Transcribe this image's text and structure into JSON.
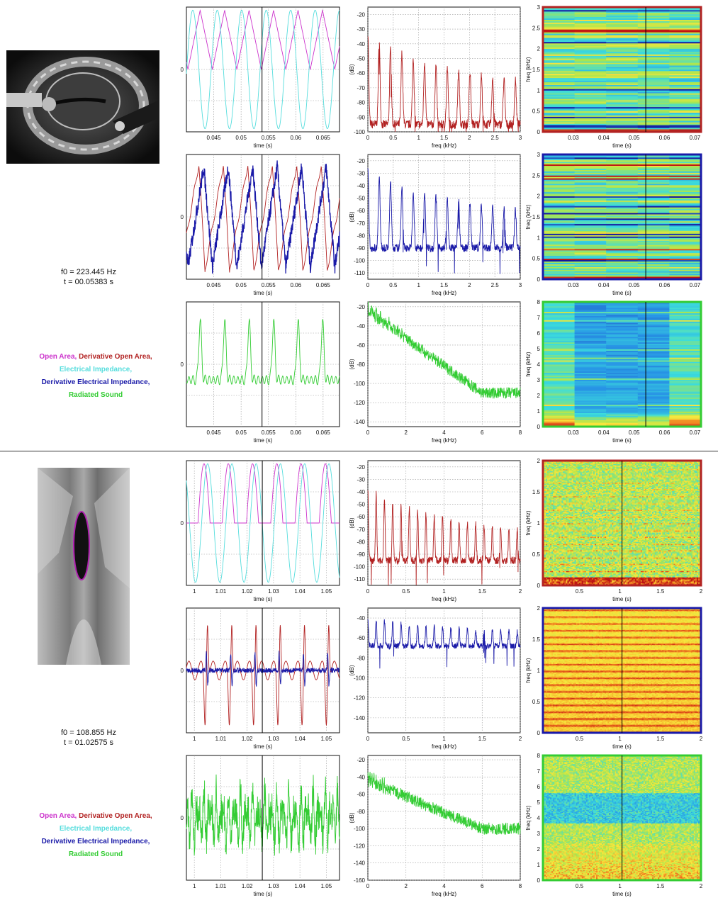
{
  "colors": {
    "open_area": "#cc33cc",
    "deriv_open_area": "#b22222",
    "impedance": "#55dddd",
    "deriv_impedance": "#1a1aa8",
    "sound": "#33cc33"
  },
  "legend": {
    "open_area": "Open Area,",
    "deriv_open_area": "Derivative Open Area,",
    "impedance": "Electrical Impedance,",
    "deriv_impedance": "Derivative Electrical Impedance,",
    "sound": "Radiated Sound"
  },
  "panels": [
    {
      "id": "top",
      "info": {
        "f0": "f0 = 223.445 Hz",
        "t": "t = 00.05383 s"
      },
      "photo": "vocal-fold-photo-top",
      "charts": [
        {
          "type": "line",
          "row": 0,
          "col": 0,
          "xlabel": "time (s)",
          "ylabel": "",
          "xlim": [
            0.04,
            0.068
          ],
          "ylim": [
            -1,
            1
          ],
          "xticks": [
            "0.045",
            "0.05",
            "0.055",
            "0.06",
            "0.065"
          ],
          "xtick_vals": [
            0.045,
            0.05,
            0.055,
            0.06,
            0.065
          ],
          "yticks": [
            "0"
          ],
          "ytick_vals": [
            0
          ],
          "cursor": 0.05383,
          "series": [
            {
              "color": "open_area",
              "shape": "tri",
              "period": 0.004475,
              "phase": 0.0,
              "amp": 0.95,
              "offset": 0.0,
              "floor": 0.0
            },
            {
              "color": "impedance",
              "shape": "sine",
              "period": 0.004475,
              "phase": 0.8,
              "amp": 0.95,
              "offset": 0.0
            }
          ]
        },
        {
          "type": "line",
          "row": 0,
          "col": 1,
          "xlabel": "freq (kHz)",
          "ylabel": "(dB)",
          "xlim": [
            0,
            3
          ],
          "ylim": [
            -100,
            -15
          ],
          "xticks": [
            "0",
            "0.5",
            "1",
            "1.5",
            "2",
            "2.5",
            "3"
          ],
          "xtick_vals": [
            0,
            0.5,
            1,
            1.5,
            2,
            2.5,
            3
          ],
          "yticks": [
            "-20",
            "-30",
            "-40",
            "-50",
            "-60",
            "-70",
            "-80",
            "-90",
            "-100"
          ],
          "ytick_vals": [
            -20,
            -30,
            -40,
            -50,
            -60,
            -70,
            -80,
            -90,
            -100
          ],
          "series": [
            {
              "color": "deriv_open_area",
              "shape": "spectrum",
              "f0": 0.2234,
              "peak": -32,
              "slope": 12,
              "floor": -95
            }
          ]
        },
        {
          "type": "heatmap",
          "row": 0,
          "col": 2,
          "xlabel": "time (s)",
          "ylabel": "freq (kHz)",
          "xlim": [
            0.02,
            0.072
          ],
          "ylim": [
            0,
            3
          ],
          "xticks": [
            "0.03",
            "0.04",
            "0.05",
            "0.06",
            "0.07"
          ],
          "xtick_vals": [
            0.03,
            0.04,
            0.05,
            0.06,
            0.07
          ],
          "yticks": [
            "0",
            "0.5",
            "1",
            "1.5",
            "2",
            "2.5",
            "3"
          ],
          "ytick_vals": [
            0,
            0.5,
            1,
            1.5,
            2,
            2.5,
            3
          ],
          "cursor": 0.05383,
          "border": "deriv_open_area",
          "style": "blocky"
        },
        {
          "type": "line",
          "row": 1,
          "col": 0,
          "xlabel": "time (s)",
          "ylabel": "",
          "xlim": [
            0.04,
            0.068
          ],
          "ylim": [
            -1,
            1
          ],
          "xticks": [
            "0.045",
            "0.05",
            "0.055",
            "0.06",
            "0.065"
          ],
          "xtick_vals": [
            0.045,
            0.05,
            0.055,
            0.06,
            0.065
          ],
          "yticks": [
            "0"
          ],
          "ytick_vals": [
            0
          ],
          "cursor": 0.05383,
          "series": [
            {
              "color": "deriv_open_area",
              "shape": "saw",
              "period": 0.004475,
              "phase": 0.3,
              "amp": 0.85,
              "offset": 0.0
            },
            {
              "color": "deriv_impedance",
              "shape": "sawnoisy",
              "period": 0.004475,
              "phase": 0.0,
              "amp": 0.8,
              "offset": 0.0
            }
          ]
        },
        {
          "type": "line",
          "row": 1,
          "col": 1,
          "xlabel": "freq (kHz)",
          "ylabel": "(dB)",
          "xlim": [
            0,
            3
          ],
          "ylim": [
            -115,
            -15
          ],
          "xticks": [
            "0",
            "0.5",
            "1",
            "1.5",
            "2",
            "2.5",
            "3"
          ],
          "xtick_vals": [
            0,
            0.5,
            1,
            1.5,
            2,
            2.5,
            3
          ],
          "yticks": [
            "-20",
            "-30",
            "-40",
            "-50",
            "-60",
            "-70",
            "-80",
            "-90",
            "-100",
            "-110"
          ],
          "ytick_vals": [
            -20,
            -30,
            -40,
            -50,
            -60,
            -70,
            -80,
            -90,
            -100,
            -110
          ],
          "series": [
            {
              "color": "deriv_impedance",
              "shape": "spectrum",
              "f0": 0.2234,
              "peak": -26,
              "slope": 12,
              "floor": -90
            }
          ]
        },
        {
          "type": "heatmap",
          "row": 1,
          "col": 2,
          "xlabel": "time (s)",
          "ylabel": "freq (kHz)",
          "xlim": [
            0.02,
            0.072
          ],
          "ylim": [
            0,
            3
          ],
          "xticks": [
            "0.03",
            "0.04",
            "0.05",
            "0.06",
            "0.07"
          ],
          "xtick_vals": [
            0.03,
            0.04,
            0.05,
            0.06,
            0.07
          ],
          "yticks": [
            "0",
            "0.5",
            "1",
            "1.5",
            "2",
            "2.5",
            "3"
          ],
          "ytick_vals": [
            0,
            0.5,
            1,
            1.5,
            2,
            2.5,
            3
          ],
          "cursor": 0.05383,
          "border": "deriv_impedance",
          "style": "blocky"
        },
        {
          "type": "line",
          "row": 2,
          "col": 0,
          "xlabel": "time (s)",
          "ylabel": "",
          "xlim": [
            0.04,
            0.068
          ],
          "ylim": [
            -1,
            1
          ],
          "xticks": [
            "0.045",
            "0.05",
            "0.055",
            "0.06",
            "0.065"
          ],
          "xtick_vals": [
            0.045,
            0.05,
            0.055,
            0.06,
            0.065
          ],
          "yticks": [
            "0"
          ],
          "ytick_vals": [
            0
          ],
          "cursor": 0.05383,
          "series": [
            {
              "color": "sound",
              "shape": "pulse",
              "period": 0.004475,
              "phase": 0.0,
              "amp": 0.95,
              "offset": -0.25
            }
          ]
        },
        {
          "type": "line",
          "row": 2,
          "col": 1,
          "xlabel": "freq (kHz)",
          "ylabel": "(dB)",
          "xlim": [
            0,
            8
          ],
          "ylim": [
            -145,
            -15
          ],
          "xticks": [
            "0",
            "2",
            "4",
            "6",
            "8"
          ],
          "xtick_vals": [
            0,
            2,
            4,
            6,
            8
          ],
          "yticks": [
            "-20",
            "-40",
            "-60",
            "-80",
            "-100",
            "-120",
            "-140"
          ],
          "ytick_vals": [
            -20,
            -40,
            -60,
            -80,
            -100,
            -120,
            -140
          ],
          "series": [
            {
              "color": "sound",
              "shape": "decay",
              "f0": 0.2234,
              "start": -25,
              "end": -110,
              "noise": 12
            }
          ]
        },
        {
          "type": "heatmap",
          "row": 2,
          "col": 2,
          "xlabel": "time (s)",
          "ylabel": "freq (kHz)",
          "xlim": [
            0.02,
            0.072
          ],
          "ylim": [
            0,
            8
          ],
          "xticks": [
            "0.03",
            "0.04",
            "0.05",
            "0.06",
            "0.07"
          ],
          "xtick_vals": [
            0.03,
            0.04,
            0.05,
            0.06,
            0.07
          ],
          "yticks": [
            "0",
            "1",
            "2",
            "3",
            "4",
            "5",
            "6",
            "7",
            "8"
          ],
          "ytick_vals": [
            0,
            1,
            2,
            3,
            4,
            5,
            6,
            7,
            8
          ],
          "cursor": 0.05383,
          "border": "sound",
          "style": "blocky-blue"
        }
      ]
    },
    {
      "id": "bottom",
      "info": {
        "f0": "f0 = 108.855 Hz",
        "t": "t = 01.02575 s"
      },
      "photo": "glottis-photo-bottom",
      "charts": [
        {
          "type": "line",
          "row": 0,
          "col": 0,
          "xlabel": "time (s)",
          "ylabel": "",
          "xlim": [
            0.997,
            1.055
          ],
          "ylim": [
            -1,
            1
          ],
          "xticks": [
            "1",
            "1.01",
            "1.02",
            "1.03",
            "1.04",
            "1.05"
          ],
          "xtick_vals": [
            1,
            1.01,
            1.02,
            1.03,
            1.04,
            1.05
          ],
          "yticks": [
            "0"
          ],
          "ytick_vals": [
            0
          ],
          "cursor": 1.02575,
          "series": [
            {
              "color": "open_area",
              "shape": "halfsine",
              "period": 0.009187,
              "phase": 0.0,
              "amp": 0.95,
              "offset": 0.0
            },
            {
              "color": "impedance",
              "shape": "sine",
              "period": 0.009187,
              "phase": 0.6,
              "amp": 0.95,
              "offset": 0.0
            }
          ]
        },
        {
          "type": "line",
          "row": 0,
          "col": 1,
          "xlabel": "freq (kHz)",
          "ylabel": "(dB)",
          "xlim": [
            0,
            2
          ],
          "ylim": [
            -115,
            -15
          ],
          "xticks": [
            "0",
            "0.5",
            "1",
            "1.5",
            "2"
          ],
          "xtick_vals": [
            0,
            0.5,
            1,
            1.5,
            2
          ],
          "yticks": [
            "-20",
            "-30",
            "-40",
            "-50",
            "-60",
            "-70",
            "-80",
            "-90",
            "-100",
            "-110"
          ],
          "ytick_vals": [
            -20,
            -30,
            -40,
            -50,
            -60,
            -70,
            -80,
            -90,
            -100,
            -110
          ],
          "series": [
            {
              "color": "deriv_open_area",
              "shape": "spectrum",
              "f0": 0.1089,
              "peak": -38,
              "slope": 14,
              "floor": -95
            }
          ]
        },
        {
          "type": "heatmap",
          "row": 0,
          "col": 2,
          "xlabel": "time (s)",
          "ylabel": "freq (kHz)",
          "xlim": [
            0.05,
            2
          ],
          "ylim": [
            0,
            2
          ],
          "xticks": [
            "0.5",
            "1",
            "1.5",
            "2"
          ],
          "xtick_vals": [
            0.5,
            1,
            1.5,
            2
          ],
          "yticks": [
            "0",
            "0.5",
            "1",
            "1.5",
            "2"
          ],
          "ytick_vals": [
            0,
            0.5,
            1,
            1.5,
            2
          ],
          "cursor": 1.02575,
          "border": "deriv_open_area",
          "style": "noisy-yellow"
        },
        {
          "type": "line",
          "row": 1,
          "col": 0,
          "xlabel": "time (s)",
          "ylabel": "",
          "xlim": [
            0.997,
            1.055
          ],
          "ylim": [
            -1,
            1
          ],
          "xticks": [
            "1",
            "1.01",
            "1.02",
            "1.03",
            "1.04",
            "1.05"
          ],
          "xtick_vals": [
            1,
            1.01,
            1.02,
            1.03,
            1.04,
            1.05
          ],
          "yticks": [
            "0"
          ],
          "ytick_vals": [
            0
          ],
          "cursor": 1.02575,
          "series": [
            {
              "color": "deriv_open_area",
              "shape": "bipolar",
              "period": 0.009187,
              "phase": 0.0,
              "amp": 0.9,
              "offset": 0.0
            },
            {
              "color": "deriv_impedance",
              "shape": "spike",
              "period": 0.009187,
              "phase": 0.1,
              "amp": 0.5,
              "offset": 0.0
            }
          ]
        },
        {
          "type": "line",
          "row": 1,
          "col": 1,
          "xlabel": "freq (kHz)",
          "ylabel": "(dB)",
          "xlim": [
            0,
            2
          ],
          "ylim": [
            -155,
            -30
          ],
          "xticks": [
            "0",
            "0.5",
            "1",
            "1.5",
            "2"
          ],
          "xtick_vals": [
            0,
            0.5,
            1,
            1.5,
            2
          ],
          "yticks": [
            "-40",
            "-60",
            "-80",
            "-100",
            "-120",
            "-140"
          ],
          "ytick_vals": [
            -40,
            -60,
            -80,
            -100,
            -120,
            -140
          ],
          "series": [
            {
              "color": "deriv_impedance",
              "shape": "spectrum",
              "f0": 0.1089,
              "peak": -40,
              "slope": 6,
              "floor": -68
            }
          ]
        },
        {
          "type": "heatmap",
          "row": 1,
          "col": 2,
          "xlabel": "time (s)",
          "ylabel": "freq (kHz)",
          "xlim": [
            0.05,
            2
          ],
          "ylim": [
            0,
            2
          ],
          "xticks": [
            "0.5",
            "1",
            "1.5",
            "2"
          ],
          "xtick_vals": [
            0.5,
            1,
            1.5,
            2
          ],
          "yticks": [
            "0",
            "0.5",
            "1",
            "1.5",
            "2"
          ],
          "ytick_vals": [
            0,
            0.5,
            1,
            1.5,
            2
          ],
          "cursor": 1.02575,
          "border": "deriv_impedance",
          "style": "harmonic-red"
        },
        {
          "type": "line",
          "row": 2,
          "col": 0,
          "xlabel": "time (s)",
          "ylabel": "",
          "xlim": [
            0.997,
            1.055
          ],
          "ylim": [
            -1,
            1
          ],
          "xticks": [
            "1",
            "1.01",
            "1.02",
            "1.03",
            "1.04",
            "1.05"
          ],
          "xtick_vals": [
            1,
            1.01,
            1.02,
            1.03,
            1.04,
            1.05
          ],
          "yticks": [
            "0"
          ],
          "ytick_vals": [
            0
          ],
          "cursor": 1.02575,
          "series": [
            {
              "color": "sound",
              "shape": "noisy",
              "period": 0.009187,
              "phase": 0.0,
              "amp": 0.6,
              "offset": 0.0
            }
          ]
        },
        {
          "type": "line",
          "row": 2,
          "col": 1,
          "xlabel": "freq (kHz)",
          "ylabel": "(dB)",
          "xlim": [
            0,
            8
          ],
          "ylim": [
            -160,
            -15
          ],
          "xticks": [
            "0",
            "2",
            "4",
            "6",
            "8"
          ],
          "xtick_vals": [
            0,
            2,
            4,
            6,
            8
          ],
          "yticks": [
            "-20",
            "-40",
            "-60",
            "-80",
            "-100",
            "-120",
            "-140",
            "-160"
          ],
          "ytick_vals": [
            -20,
            -40,
            -60,
            -80,
            -100,
            -120,
            -140,
            -160
          ],
          "series": [
            {
              "color": "sound",
              "shape": "decay",
              "f0": 0.1089,
              "start": -45,
              "end": -100,
              "noise": 14
            }
          ]
        },
        {
          "type": "heatmap",
          "row": 2,
          "col": 2,
          "xlabel": "time (s)",
          "ylabel": "freq (kHz)",
          "xlim": [
            0.05,
            2
          ],
          "ylim": [
            0,
            8
          ],
          "xticks": [
            "0.5",
            "1",
            "1.5",
            "2"
          ],
          "xtick_vals": [
            0.5,
            1,
            1.5,
            2
          ],
          "yticks": [
            "0",
            "1",
            "2",
            "3",
            "4",
            "5",
            "6",
            "7",
            "8"
          ],
          "ytick_vals": [
            0,
            1,
            2,
            3,
            4,
            5,
            6,
            7,
            8
          ],
          "cursor": 1.02575,
          "border": "sound",
          "style": "noisy-wide"
        }
      ]
    }
  ]
}
